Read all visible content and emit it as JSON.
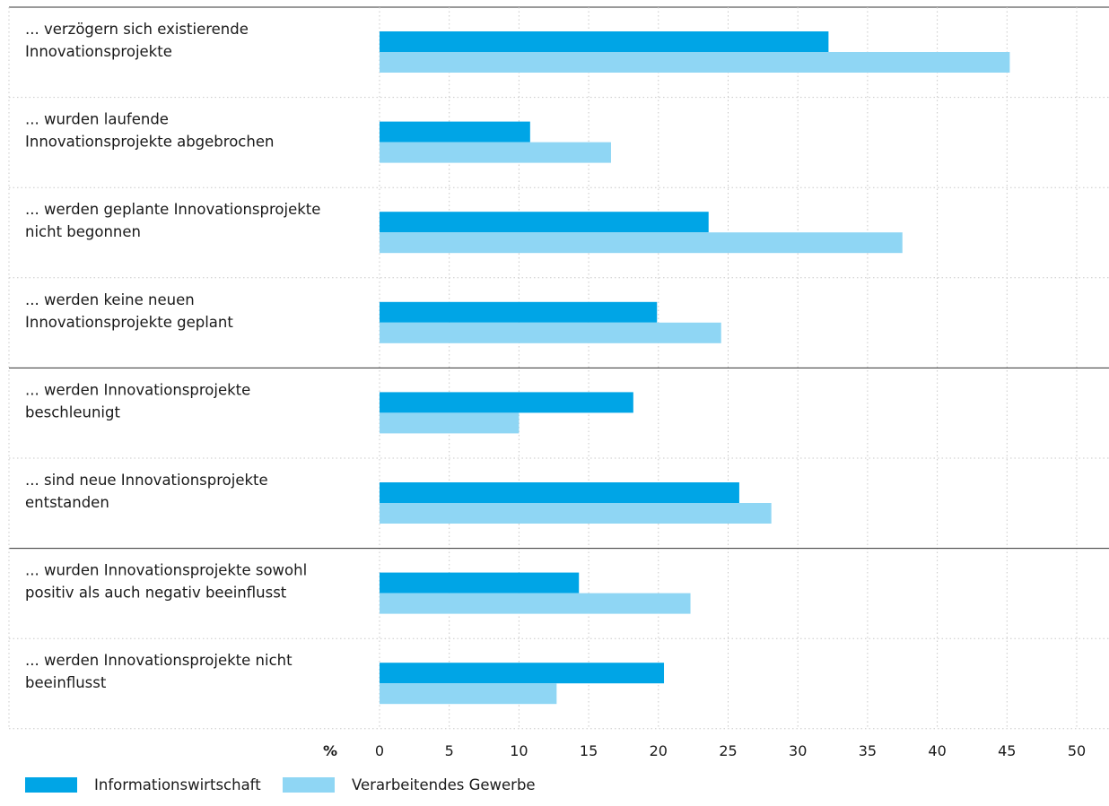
{
  "chart_data": {
    "type": "bar",
    "orientation": "horizontal",
    "categories": [
      [
        "... verzögern sich existierende",
        "Innovationsprojekte"
      ],
      [
        "... wurden laufende",
        "Innovationsprojekte abgebrochen"
      ],
      [
        "... werden geplante Innovationsprojekte",
        "nicht begonnen"
      ],
      [
        "... werden keine neuen",
        "Innovationsprojekte geplant"
      ],
      [
        "... werden Innovationsprojekte",
        "beschleunigt"
      ],
      [
        "... sind neue Innovationsprojekte",
        "entstanden"
      ],
      [
        "... wurden Innovationsprojekte sowohl",
        "positiv als auch negativ beeinflusst"
      ],
      [
        "... werden Innovationsprojekte nicht",
        "beeinflusst"
      ]
    ],
    "series": [
      {
        "name": "Informationswirtschaft",
        "color": "#00a5e6",
        "values": [
          32.2,
          10.8,
          23.6,
          19.9,
          18.2,
          25.8,
          14.3,
          20.4
        ]
      },
      {
        "name": "Verarbeitendes Gewerbe",
        "color": "#8fd6f4",
        "values": [
          45.2,
          16.6,
          37.5,
          24.5,
          10.0,
          28.1,
          22.3,
          12.7
        ]
      }
    ],
    "group_separators_after": [
      3,
      5
    ],
    "xlim": [
      0,
      50
    ],
    "xticks": [
      "0",
      "5",
      "10",
      "15",
      "20",
      "25",
      "30",
      "35",
      "40",
      "45",
      "50"
    ],
    "unit_label": "%",
    "grid": true,
    "legend_position": "bottom-left"
  }
}
